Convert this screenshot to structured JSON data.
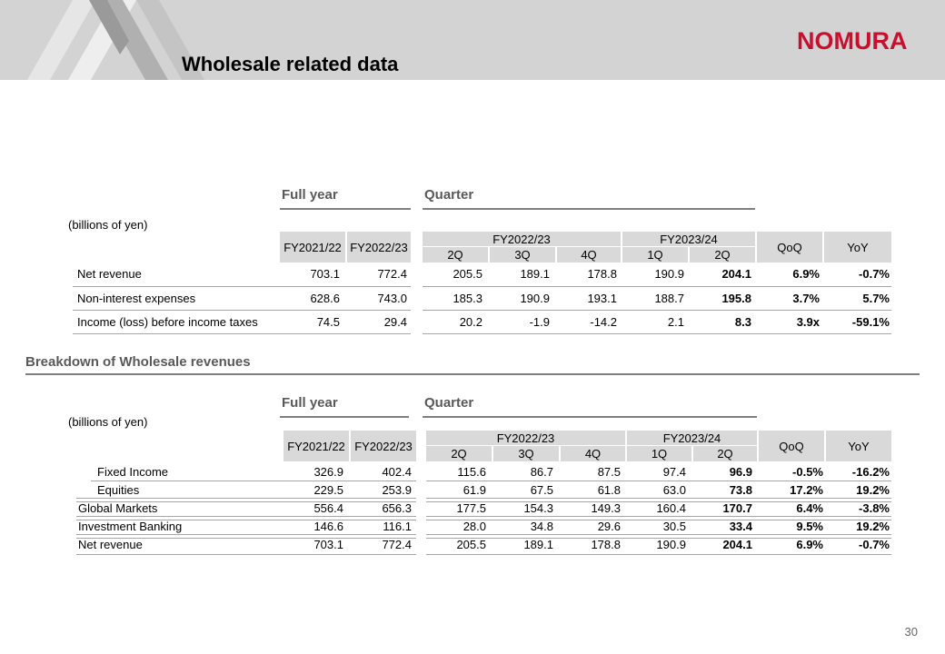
{
  "page": {
    "title": "Wholesale related data",
    "logo": "NOMURA",
    "page_number": "30"
  },
  "table1": {
    "unit": "(billions of yen)",
    "period_full_year": "Full year",
    "period_quarter": "Quarter",
    "fy_columns": [
      "FY2021/22",
      "FY2022/23"
    ],
    "group1": "FY2022/23",
    "group2": "FY2023/24",
    "quarters": [
      "2Q",
      "3Q",
      "4Q",
      "1Q",
      "2Q"
    ],
    "qoq": "QoQ",
    "yoy": "YoY",
    "rows": [
      {
        "label": "Net revenue",
        "fy": [
          "703.1",
          "772.4"
        ],
        "q": [
          "205.5",
          "189.1",
          "178.8",
          "190.9",
          "204.1"
        ],
        "qoq": "6.9%",
        "yoy": "-0.7%"
      },
      {
        "label": "Non-interest expenses",
        "fy": [
          "628.6",
          "743.0"
        ],
        "q": [
          "185.3",
          "190.9",
          "193.1",
          "188.7",
          "195.8"
        ],
        "qoq": "3.7%",
        "yoy": "5.7%"
      },
      {
        "label": "Income (loss) before income taxes",
        "fy": [
          "74.5",
          "29.4"
        ],
        "q": [
          "20.2",
          "-1.9",
          "-14.2",
          "2.1",
          "8.3"
        ],
        "qoq": "3.9x",
        "yoy": "-59.1%"
      }
    ]
  },
  "section2": {
    "title": "Breakdown of Wholesale revenues"
  },
  "table2": {
    "unit": "(billions of yen)",
    "period_full_year": "Full year",
    "period_quarter": "Quarter",
    "fy_columns": [
      "FY2021/22",
      "FY2022/23"
    ],
    "group1": "FY2022/23",
    "group2": "FY2023/24",
    "quarters": [
      "2Q",
      "3Q",
      "4Q",
      "1Q",
      "2Q"
    ],
    "qoq": "QoQ",
    "yoy": "YoY",
    "rows": [
      {
        "label": "Fixed Income",
        "fy": [
          "326.9",
          "402.4"
        ],
        "q": [
          "115.6",
          "86.7",
          "87.5",
          "97.4",
          "96.9"
        ],
        "qoq": "-0.5%",
        "yoy": "-16.2%"
      },
      {
        "label": "Equities",
        "fy": [
          "229.5",
          "253.9"
        ],
        "q": [
          "61.9",
          "67.5",
          "61.8",
          "63.0",
          "73.8"
        ],
        "qoq": "17.2%",
        "yoy": "19.2%"
      },
      {
        "label": "Global Markets",
        "fy": [
          "556.4",
          "656.3"
        ],
        "q": [
          "177.5",
          "154.3",
          "149.3",
          "160.4",
          "170.7"
        ],
        "qoq": "6.4%",
        "yoy": "-3.8%"
      },
      {
        "label": "Investment Banking",
        "fy": [
          "146.6",
          "116.1"
        ],
        "q": [
          "28.0",
          "34.8",
          "29.6",
          "30.5",
          "33.4"
        ],
        "qoq": "9.5%",
        "yoy": "19.2%"
      },
      {
        "label": "Net revenue",
        "fy": [
          "703.1",
          "772.4"
        ],
        "q": [
          "205.5",
          "189.1",
          "178.8",
          "190.9",
          "204.1"
        ],
        "qoq": "6.9%",
        "yoy": "-0.7%"
      }
    ]
  },
  "colors": {
    "banner": "#d3d3d3",
    "logo": "#c8102e",
    "header_fill": "#d9d9d9"
  }
}
